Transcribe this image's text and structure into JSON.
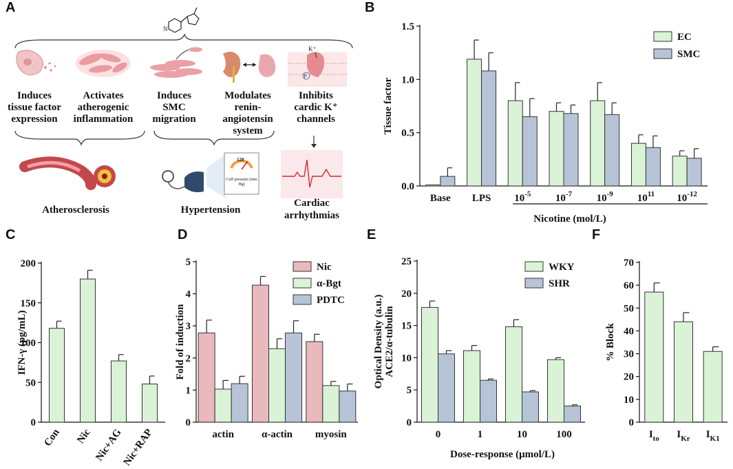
{
  "panel_letters": {
    "a": "A",
    "b": "B",
    "c": "C",
    "d": "D",
    "e": "E",
    "f": "F"
  },
  "colors": {
    "green": "#daf2d6",
    "blue": "#b7c4d8",
    "pink": "#e9b9bd",
    "edge": "#333333"
  },
  "panelA": {
    "effects": [
      {
        "label": "Induces tissue factor expression",
        "icon": "cell-icon"
      },
      {
        "label": "Activates atherogenic inflammation",
        "icon": "inflamed-cells-icon"
      },
      {
        "label": "Induces SMC migration",
        "icon": "smc-icon"
      },
      {
        "label": "Modulates renin-angiotensin system",
        "icon": "kidney-lung-icon"
      },
      {
        "label": "Inhibits cardic K⁺ channels",
        "icon": "heart-channel-icon"
      }
    ],
    "k_label": "K⁺",
    "p_label": "P",
    "outcomes": {
      "atherosclerosis": "Atherosclerosis",
      "hypertension": "Hypertension",
      "arrhythmia": "Cardiac arrhythmias"
    },
    "gauge_value": "120",
    "gauge_caption": "Cuff pressure (mm Hg)"
  },
  "chart_data": [
    {
      "panel": "B",
      "type": "bar",
      "categories": [
        "Base",
        "LPS",
        "10^-5",
        "10^-7",
        "10^-9",
        "10^11",
        "10^-12"
      ],
      "series": [
        {
          "name": "EC",
          "color": "#daf2d6",
          "values": [
            0.01,
            1.19,
            0.8,
            0.7,
            0.8,
            0.4,
            0.28
          ],
          "errors": [
            0.0,
            0.18,
            0.17,
            0.08,
            0.17,
            0.08,
            0.05
          ]
        },
        {
          "name": "SMC",
          "color": "#b7c4d8",
          "values": [
            0.09,
            1.08,
            0.65,
            0.68,
            0.67,
            0.36,
            0.26
          ],
          "errors": [
            0.08,
            0.17,
            0.17,
            0.08,
            0.11,
            0.11,
            0.09
          ]
        }
      ],
      "ylabel": "Tissue factor",
      "xlabel": "Nicotine (mol/L)",
      "ylim": [
        0,
        1.5
      ],
      "yticks": [
        "0.0",
        "0.5",
        "1.0",
        "1.5"
      ],
      "legend": "top-right"
    },
    {
      "panel": "C",
      "type": "bar",
      "categories": [
        "Con",
        "Nic",
        "Nic+AG",
        "Nic+RAP"
      ],
      "series": [
        {
          "name": "IFN-γ",
          "color": "#daf2d6",
          "values": [
            118,
            180,
            77,
            48
          ],
          "errors": [
            9,
            11,
            8,
            10
          ]
        }
      ],
      "ylabel": "IFN-γ (pg/mL)",
      "ylim": [
        0,
        200
      ],
      "yticks": [
        "0",
        "50",
        "100",
        "150",
        "200"
      ]
    },
    {
      "panel": "D",
      "type": "bar",
      "categories": [
        "actin",
        "α-actin",
        "myosin"
      ],
      "series": [
        {
          "name": "Nic",
          "color": "#e9b9bd",
          "values": [
            2.78,
            4.27,
            2.51
          ],
          "errors": [
            0.4,
            0.27,
            0.23
          ]
        },
        {
          "name": "α-Bgt",
          "color": "#daf2d6",
          "values": [
            1.03,
            2.29,
            1.14
          ],
          "errors": [
            0.27,
            0.31,
            0.13
          ]
        },
        {
          "name": "PDTC",
          "color": "#b7c4d8",
          "values": [
            1.2,
            2.78,
            0.97
          ],
          "errors": [
            0.23,
            0.38,
            0.22
          ]
        }
      ],
      "ylabel": "Fold of induction",
      "ylim": [
        0,
        5
      ],
      "yticks": [
        "0",
        "1",
        "2",
        "3",
        "4",
        "5"
      ],
      "legend": "top-right"
    },
    {
      "panel": "E",
      "type": "bar",
      "categories": [
        "0",
        "1",
        "10",
        "100"
      ],
      "series": [
        {
          "name": "WKY",
          "color": "#daf2d6",
          "values": [
            17.8,
            11.1,
            14.8,
            9.7
          ],
          "errors": [
            1.0,
            0.8,
            1.1,
            0.3
          ]
        },
        {
          "name": "SHR",
          "color": "#b7c4d8",
          "values": [
            10.6,
            6.5,
            4.7,
            2.5
          ],
          "errors": [
            0.5,
            0.2,
            0.2,
            0.2
          ]
        }
      ],
      "ylabel_line1": "Optical Density (a.u.)",
      "ylabel_line2": "ACE2/α-tubulin",
      "xlabel": "Dose-response (μmol/L)",
      "ylim": [
        0,
        25
      ],
      "yticks": [
        "0",
        "5",
        "10",
        "15",
        "20",
        "25"
      ],
      "legend": "top-right"
    },
    {
      "panel": "F",
      "type": "bar",
      "categories": [
        {
          "base": "I",
          "sub": "to"
        },
        {
          "base": "I",
          "sub": "Kr"
        },
        {
          "base": "I",
          "sub": "K1"
        }
      ],
      "series": [
        {
          "name": "% Block",
          "color": "#daf2d6",
          "values": [
            57,
            44,
            31
          ],
          "errors": [
            4,
            4,
            2
          ]
        }
      ],
      "ylabel": "% Block",
      "ylim": [
        0,
        70
      ],
      "yticks": [
        "0",
        "10",
        "20",
        "30",
        "40",
        "50",
        "60",
        "70"
      ]
    }
  ]
}
